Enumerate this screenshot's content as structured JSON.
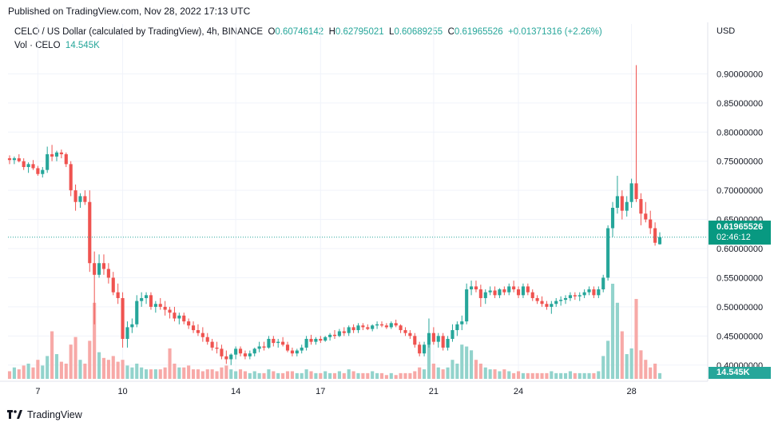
{
  "header": {
    "published": "Published on TradingView.com, Nov 28, 2022 17:13 UTC"
  },
  "legend": {
    "symbol": "CELO / US Dollar (calculated by TradingView), 4h, BINANCE",
    "o_label": "O",
    "o_value": "0.60746142",
    "h_label": "H",
    "h_value": "0.62795021",
    "l_label": "L",
    "l_value": "0.60689255",
    "c_label": "C",
    "c_value": "0.61965526",
    "change": "+0.01371316 (+2.26%)",
    "vol_label": "Vol · CELO",
    "vol_value": "14.545K"
  },
  "currency": "USD",
  "price_tag": {
    "price": "0.61965526",
    "countdown": "02:46:12"
  },
  "volume_tag": "14.545K",
  "footer": {
    "brand": "TradingView",
    "logo_icon": "tradingview-logo-icon"
  },
  "colors": {
    "up": "#26a69a",
    "down": "#ef5350",
    "up_vol": "#92d3cc",
    "down_vol": "#f7a9a7",
    "grid": "#f0f3fa"
  },
  "chart_data": {
    "type": "candlestick",
    "timeframe": "4h",
    "y_ticks": [
      "0.40000000",
      "0.45000000",
      "0.50000000",
      "0.55000000",
      "0.60000000",
      "0.65000000",
      "0.70000000",
      "0.75000000",
      "0.80000000",
      "0.85000000",
      "0.90000000"
    ],
    "ylim": [
      0.375,
      0.965
    ],
    "x_tick_labels": [
      {
        "label": "7",
        "index": 6
      },
      {
        "label": "10",
        "index": 24
      },
      {
        "label": "14",
        "index": 48
      },
      {
        "label": "17",
        "index": 66
      },
      {
        "label": "21",
        "index": 90
      },
      {
        "label": "24",
        "index": 108
      },
      {
        "label": "28",
        "index": 132
      }
    ],
    "last_price": 0.61965526,
    "candles": [
      [
        0.755,
        0.76,
        0.745,
        0.752,
        4
      ],
      [
        0.752,
        0.758,
        0.745,
        0.755,
        6
      ],
      [
        0.755,
        0.762,
        0.748,
        0.75,
        5
      ],
      [
        0.75,
        0.755,
        0.735,
        0.74,
        7
      ],
      [
        0.74,
        0.748,
        0.73,
        0.745,
        8
      ],
      [
        0.745,
        0.752,
        0.735,
        0.738,
        6
      ],
      [
        0.738,
        0.742,
        0.725,
        0.728,
        10
      ],
      [
        0.728,
        0.74,
        0.722,
        0.735,
        7
      ],
      [
        0.735,
        0.775,
        0.73,
        0.762,
        12
      ],
      [
        0.762,
        0.778,
        0.75,
        0.758,
        25
      ],
      [
        0.758,
        0.768,
        0.75,
        0.765,
        13
      ],
      [
        0.765,
        0.77,
        0.755,
        0.762,
        9
      ],
      [
        0.762,
        0.765,
        0.74,
        0.745,
        8
      ],
      [
        0.745,
        0.75,
        0.69,
        0.7,
        18
      ],
      [
        0.7,
        0.71,
        0.665,
        0.68,
        22
      ],
      [
        0.68,
        0.695,
        0.67,
        0.69,
        10
      ],
      [
        0.69,
        0.7,
        0.675,
        0.68,
        8
      ],
      [
        0.68,
        0.7,
        0.56,
        0.575,
        20
      ],
      [
        0.575,
        0.595,
        0.47,
        0.555,
        40
      ],
      [
        0.555,
        0.59,
        0.55,
        0.575,
        14
      ],
      [
        0.575,
        0.59,
        0.555,
        0.565,
        11
      ],
      [
        0.565,
        0.575,
        0.54,
        0.55,
        10
      ],
      [
        0.55,
        0.56,
        0.52,
        0.525,
        12
      ],
      [
        0.525,
        0.54,
        0.505,
        0.515,
        9
      ],
      [
        0.515,
        0.525,
        0.43,
        0.445,
        10
      ],
      [
        0.445,
        0.475,
        0.43,
        0.465,
        7
      ],
      [
        0.465,
        0.48,
        0.455,
        0.47,
        6
      ],
      [
        0.47,
        0.52,
        0.465,
        0.51,
        8
      ],
      [
        0.51,
        0.525,
        0.5,
        0.515,
        6
      ],
      [
        0.515,
        0.525,
        0.505,
        0.52,
        5
      ],
      [
        0.52,
        0.525,
        0.495,
        0.5,
        5
      ],
      [
        0.5,
        0.51,
        0.49,
        0.505,
        5
      ],
      [
        0.505,
        0.515,
        0.495,
        0.5,
        5
      ],
      [
        0.5,
        0.51,
        0.485,
        0.495,
        6
      ],
      [
        0.495,
        0.5,
        0.48,
        0.49,
        16
      ],
      [
        0.49,
        0.5,
        0.475,
        0.48,
        8
      ],
      [
        0.48,
        0.49,
        0.47,
        0.485,
        6
      ],
      [
        0.485,
        0.49,
        0.47,
        0.475,
        6
      ],
      [
        0.475,
        0.48,
        0.462,
        0.468,
        7
      ],
      [
        0.468,
        0.475,
        0.455,
        0.46,
        5
      ],
      [
        0.46,
        0.47,
        0.45,
        0.455,
        5
      ],
      [
        0.455,
        0.465,
        0.44,
        0.448,
        4
      ],
      [
        0.448,
        0.455,
        0.435,
        0.44,
        5
      ],
      [
        0.44,
        0.445,
        0.425,
        0.43,
        5
      ],
      [
        0.43,
        0.44,
        0.42,
        0.428,
        4
      ],
      [
        0.428,
        0.435,
        0.41,
        0.415,
        6
      ],
      [
        0.415,
        0.425,
        0.402,
        0.41,
        7
      ],
      [
        0.41,
        0.42,
        0.4,
        0.418,
        5
      ],
      [
        0.418,
        0.432,
        0.41,
        0.428,
        4
      ],
      [
        0.428,
        0.432,
        0.415,
        0.42,
        5
      ],
      [
        0.42,
        0.425,
        0.41,
        0.415,
        4
      ],
      [
        0.415,
        0.425,
        0.41,
        0.42,
        3
      ],
      [
        0.42,
        0.43,
        0.415,
        0.428,
        4
      ],
      [
        0.428,
        0.44,
        0.422,
        0.432,
        3
      ],
      [
        0.432,
        0.44,
        0.425,
        0.43,
        3
      ],
      [
        0.43,
        0.45,
        0.428,
        0.445,
        5
      ],
      [
        0.445,
        0.45,
        0.432,
        0.438,
        4
      ],
      [
        0.438,
        0.445,
        0.43,
        0.44,
        3
      ],
      [
        0.44,
        0.448,
        0.432,
        0.435,
        3
      ],
      [
        0.435,
        0.44,
        0.422,
        0.425,
        4
      ],
      [
        0.425,
        0.43,
        0.415,
        0.42,
        4
      ],
      [
        0.42,
        0.428,
        0.415,
        0.425,
        3
      ],
      [
        0.425,
        0.435,
        0.42,
        0.43,
        3
      ],
      [
        0.43,
        0.45,
        0.425,
        0.445,
        5
      ],
      [
        0.445,
        0.452,
        0.435,
        0.44,
        4
      ],
      [
        0.44,
        0.448,
        0.435,
        0.445,
        3
      ],
      [
        0.445,
        0.45,
        0.438,
        0.442,
        3
      ],
      [
        0.442,
        0.45,
        0.44,
        0.448,
        4
      ],
      [
        0.448,
        0.455,
        0.442,
        0.452,
        3
      ],
      [
        0.452,
        0.46,
        0.445,
        0.45,
        3
      ],
      [
        0.45,
        0.462,
        0.448,
        0.458,
        4
      ],
      [
        0.458,
        0.465,
        0.45,
        0.455,
        3
      ],
      [
        0.455,
        0.468,
        0.45,
        0.465,
        5
      ],
      [
        0.465,
        0.47,
        0.455,
        0.46,
        4
      ],
      [
        0.46,
        0.472,
        0.455,
        0.468,
        3
      ],
      [
        0.468,
        0.472,
        0.46,
        0.465,
        3
      ],
      [
        0.465,
        0.47,
        0.46,
        0.462,
        3
      ],
      [
        0.462,
        0.47,
        0.458,
        0.468,
        4
      ],
      [
        0.468,
        0.475,
        0.462,
        0.47,
        3
      ],
      [
        0.47,
        0.475,
        0.465,
        0.468,
        3
      ],
      [
        0.468,
        0.472,
        0.462,
        0.465,
        2
      ],
      [
        0.465,
        0.475,
        0.462,
        0.472,
        3
      ],
      [
        0.472,
        0.478,
        0.465,
        0.468,
        2
      ],
      [
        0.468,
        0.47,
        0.455,
        0.46,
        3
      ],
      [
        0.46,
        0.465,
        0.45,
        0.455,
        3
      ],
      [
        0.455,
        0.46,
        0.445,
        0.45,
        3
      ],
      [
        0.45,
        0.455,
        0.43,
        0.435,
        4
      ],
      [
        0.435,
        0.44,
        0.415,
        0.42,
        6
      ],
      [
        0.42,
        0.44,
        0.415,
        0.435,
        5
      ],
      [
        0.435,
        0.48,
        0.43,
        0.455,
        18
      ],
      [
        0.455,
        0.465,
        0.435,
        0.44,
        8
      ],
      [
        0.44,
        0.455,
        0.43,
        0.45,
        6
      ],
      [
        0.45,
        0.455,
        0.425,
        0.43,
        5
      ],
      [
        0.43,
        0.45,
        0.425,
        0.445,
        6
      ],
      [
        0.445,
        0.47,
        0.44,
        0.46,
        10
      ],
      [
        0.46,
        0.475,
        0.45,
        0.47,
        8
      ],
      [
        0.47,
        0.485,
        0.46,
        0.475,
        18
      ],
      [
        0.475,
        0.54,
        0.47,
        0.53,
        17
      ],
      [
        0.53,
        0.545,
        0.52,
        0.535,
        15
      ],
      [
        0.535,
        0.545,
        0.525,
        0.53,
        10
      ],
      [
        0.53,
        0.538,
        0.5,
        0.515,
        8
      ],
      [
        0.515,
        0.53,
        0.505,
        0.525,
        6
      ],
      [
        0.525,
        0.535,
        0.52,
        0.528,
        5
      ],
      [
        0.528,
        0.535,
        0.515,
        0.52,
        5
      ],
      [
        0.52,
        0.532,
        0.515,
        0.53,
        4
      ],
      [
        0.53,
        0.535,
        0.52,
        0.525,
        5
      ],
      [
        0.525,
        0.54,
        0.52,
        0.535,
        4
      ],
      [
        0.535,
        0.545,
        0.525,
        0.53,
        3
      ],
      [
        0.53,
        0.535,
        0.515,
        0.52,
        4
      ],
      [
        0.52,
        0.54,
        0.515,
        0.535,
        3
      ],
      [
        0.535,
        0.54,
        0.52,
        0.525,
        3
      ],
      [
        0.525,
        0.53,
        0.51,
        0.515,
        3
      ],
      [
        0.515,
        0.52,
        0.505,
        0.51,
        3
      ],
      [
        0.51,
        0.518,
        0.5,
        0.505,
        3
      ],
      [
        0.505,
        0.51,
        0.495,
        0.5,
        3
      ],
      [
        0.5,
        0.51,
        0.488,
        0.505,
        4
      ],
      [
        0.505,
        0.515,
        0.5,
        0.51,
        3
      ],
      [
        0.51,
        0.518,
        0.502,
        0.512,
        3
      ],
      [
        0.512,
        0.52,
        0.505,
        0.515,
        3
      ],
      [
        0.515,
        0.525,
        0.51,
        0.52,
        4
      ],
      [
        0.52,
        0.525,
        0.512,
        0.518,
        3
      ],
      [
        0.518,
        0.525,
        0.51,
        0.52,
        3
      ],
      [
        0.52,
        0.53,
        0.515,
        0.525,
        3
      ],
      [
        0.525,
        0.535,
        0.52,
        0.53,
        3
      ],
      [
        0.53,
        0.535,
        0.515,
        0.52,
        3
      ],
      [
        0.52,
        0.535,
        0.515,
        0.53,
        4
      ],
      [
        0.53,
        0.555,
        0.525,
        0.55,
        12
      ],
      [
        0.55,
        0.64,
        0.545,
        0.635,
        20
      ],
      [
        0.635,
        0.68,
        0.62,
        0.67,
        50
      ],
      [
        0.67,
        0.725,
        0.66,
        0.69,
        40
      ],
      [
        0.69,
        0.7,
        0.65,
        0.665,
        25
      ],
      [
        0.665,
        0.69,
        0.655,
        0.68,
        13
      ],
      [
        0.68,
        0.72,
        0.67,
        0.712,
        16
      ],
      [
        0.712,
        0.915,
        0.68,
        0.685,
        42
      ],
      [
        0.685,
        0.695,
        0.64,
        0.66,
        15
      ],
      [
        0.66,
        0.68,
        0.645,
        0.65,
        10
      ],
      [
        0.65,
        0.665,
        0.625,
        0.635,
        6
      ],
      [
        0.635,
        0.645,
        0.605,
        0.61,
        8
      ],
      [
        0.6075,
        0.628,
        0.6069,
        0.6197,
        3
      ]
    ]
  }
}
